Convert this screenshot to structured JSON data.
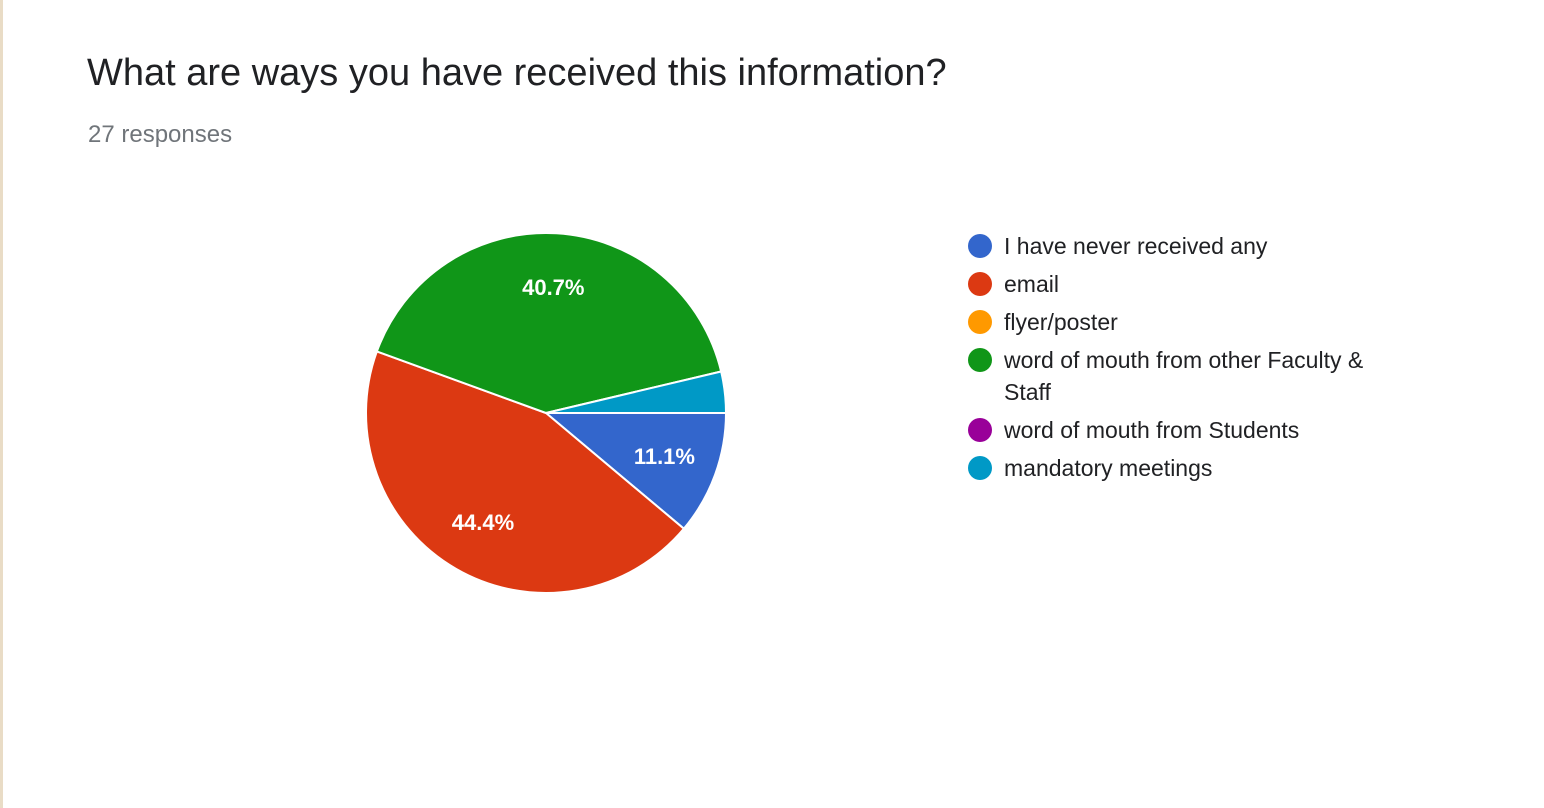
{
  "chart_data": {
    "type": "pie",
    "title": "What are ways you have received this information?",
    "subtitle": "27 responses",
    "legend_position": "right",
    "slices": [
      {
        "label": "I have never received any",
        "value": 11.1,
        "display": "11.1%",
        "color": "#3366cc"
      },
      {
        "label": "email",
        "value": 44.4,
        "display": "44.4%",
        "color": "#dc3912"
      },
      {
        "label": "flyer/poster",
        "value": 0,
        "display": "",
        "color": "#ff9900"
      },
      {
        "label": "word of mouth from other Faculty & Staff",
        "value": 40.7,
        "display": "40.7%",
        "color": "#109618"
      },
      {
        "label": "word of mouth from Students",
        "value": 0,
        "display": "",
        "color": "#990099"
      },
      {
        "label": "mandatory meetings",
        "value": 3.7,
        "display": "",
        "color": "#0099c6"
      }
    ]
  }
}
